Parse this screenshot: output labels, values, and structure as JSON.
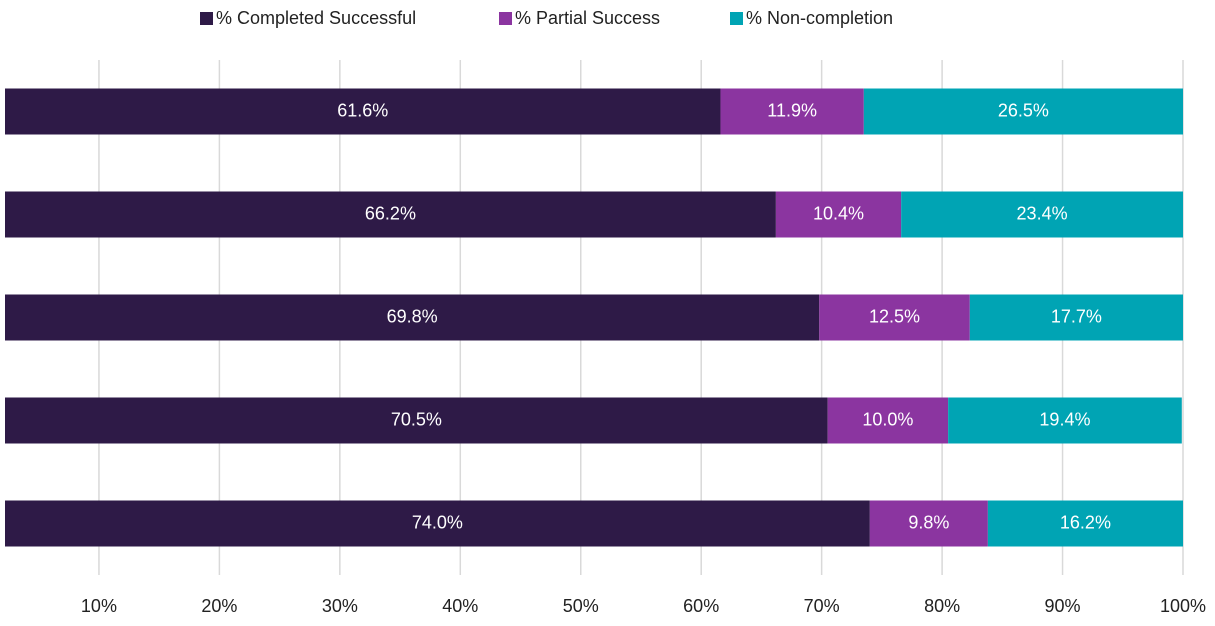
{
  "chart_data": {
    "type": "stacked-bar-horizontal",
    "categories": [
      null,
      null,
      null,
      null,
      null
    ],
    "series": [
      {
        "name": "% Completed Successful",
        "color": "#2e1a47",
        "values": [
          61.6,
          66.2,
          69.8,
          70.5,
          74.0
        ],
        "value_labels": [
          "61.6%",
          "66.2%",
          "69.8%",
          "70.5%",
          "74.0%"
        ]
      },
      {
        "name": "% Partial Success",
        "color": "#8b35a0",
        "values": [
          11.9,
          10.4,
          12.5,
          10.0,
          9.8
        ],
        "value_labels": [
          "11.9%",
          "10.4%",
          "12.5%",
          "10.0%",
          "9.8%"
        ]
      },
      {
        "name": "% Non-completion",
        "color": "#00a4b4",
        "values": [
          26.5,
          23.4,
          17.7,
          19.4,
          16.2
        ],
        "value_labels": [
          "26.5%",
          "23.4%",
          "17.7%",
          "19.4%",
          "16.2%"
        ]
      }
    ],
    "xlim": [
      2.2,
      100
    ],
    "xticks": [
      {
        "value": 10,
        "label": "10%"
      },
      {
        "value": 20,
        "label": "20%"
      },
      {
        "value": 30,
        "label": "30%"
      },
      {
        "value": 40,
        "label": "40%"
      },
      {
        "value": 50,
        "label": "50%"
      },
      {
        "value": 60,
        "label": "60%"
      },
      {
        "value": 70,
        "label": "70%"
      },
      {
        "value": 80,
        "label": "80%"
      },
      {
        "value": 90,
        "label": "90%"
      },
      {
        "value": 100,
        "label": "100%"
      }
    ],
    "grid": true,
    "legend": "top"
  }
}
